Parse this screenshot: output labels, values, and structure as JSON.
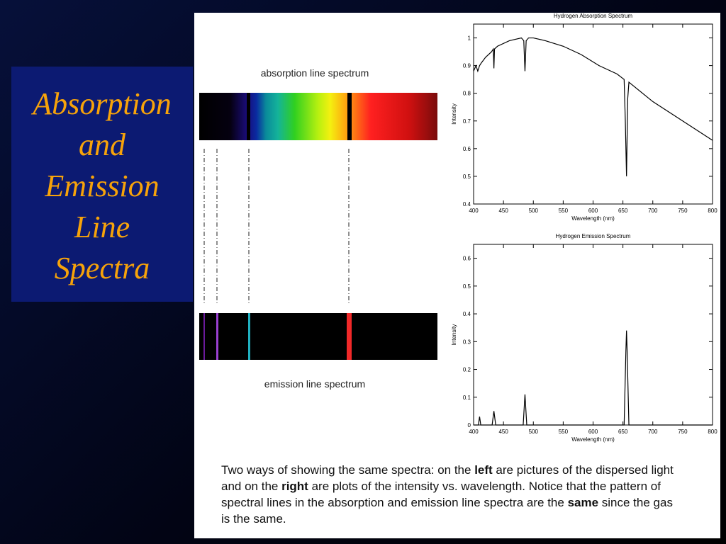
{
  "title_lines": [
    "Absorption",
    "and",
    "Emission",
    "Line",
    "Spectra"
  ],
  "absorption_label": "absorption line spectrum",
  "emission_label": "emission line spectrum",
  "caption": [
    {
      "text": "Two ways of showing the same spectra: on the ",
      "bold": false
    },
    {
      "text": "left",
      "bold": true
    },
    {
      "text": " are pictures of the dispersed light and on the ",
      "bold": false
    },
    {
      "text": "right",
      "bold": true
    },
    {
      "text": " are plots of the intensity vs. wavelength. Notice that the pattern of spectral lines in the absorption and emission line spectra are the ",
      "bold": false
    },
    {
      "text": "same",
      "bold": true
    },
    {
      "text": " since the gas is the same.",
      "bold": false
    }
  ],
  "chart_data": [
    {
      "type": "line",
      "title": "Hydrogen Absorption Spectrum",
      "x_label": "Wavelength (nm)",
      "y_label": "Intensity",
      "xlim": [
        400,
        800
      ],
      "xticks": [
        400,
        450,
        500,
        550,
        600,
        650,
        700,
        750,
        800
      ],
      "ylim": [
        0.4,
        1.05
      ],
      "yticks": [
        0.4,
        0.5,
        0.6,
        0.7,
        0.8,
        0.9,
        1
      ],
      "series": [
        {
          "color": "#000000",
          "x": [
            400,
            404,
            407,
            410,
            413,
            420,
            430,
            433,
            434,
            435,
            440,
            460,
            480,
            484,
            486,
            488,
            492,
            500,
            520,
            550,
            580,
            610,
            640,
            652,
            654,
            656,
            658,
            660,
            700,
            750,
            800
          ],
          "values": [
            0.88,
            0.9,
            0.88,
            0.9,
            0.91,
            0.93,
            0.95,
            0.96,
            0.89,
            0.96,
            0.97,
            0.99,
            1.0,
            0.99,
            0.88,
            0.99,
            1.0,
            1.0,
            0.99,
            0.97,
            0.94,
            0.9,
            0.87,
            0.85,
            0.7,
            0.5,
            0.78,
            0.84,
            0.77,
            0.7,
            0.63
          ]
        }
      ]
    },
    {
      "type": "line",
      "title": "Hydrogen Emission Spectrum",
      "x_label": "Wavelength (nm)",
      "y_label": "Intensity",
      "xlim": [
        400,
        800
      ],
      "xticks": [
        400,
        450,
        500,
        550,
        600,
        650,
        700,
        750,
        800
      ],
      "ylim": [
        0,
        0.65
      ],
      "yticks": [
        0,
        0.1,
        0.2,
        0.3,
        0.4,
        0.5,
        0.6
      ],
      "series": [
        {
          "color": "#000000",
          "x": [
            400,
            408,
            410,
            412,
            431,
            434,
            437,
            483,
            486,
            489,
            652,
            655,
            656,
            657,
            660,
            800
          ],
          "values": [
            0,
            0,
            0.03,
            0,
            0,
            0.05,
            0,
            0,
            0.11,
            0,
            0,
            0.27,
            0.34,
            0.27,
            0,
            0
          ]
        }
      ]
    }
  ]
}
